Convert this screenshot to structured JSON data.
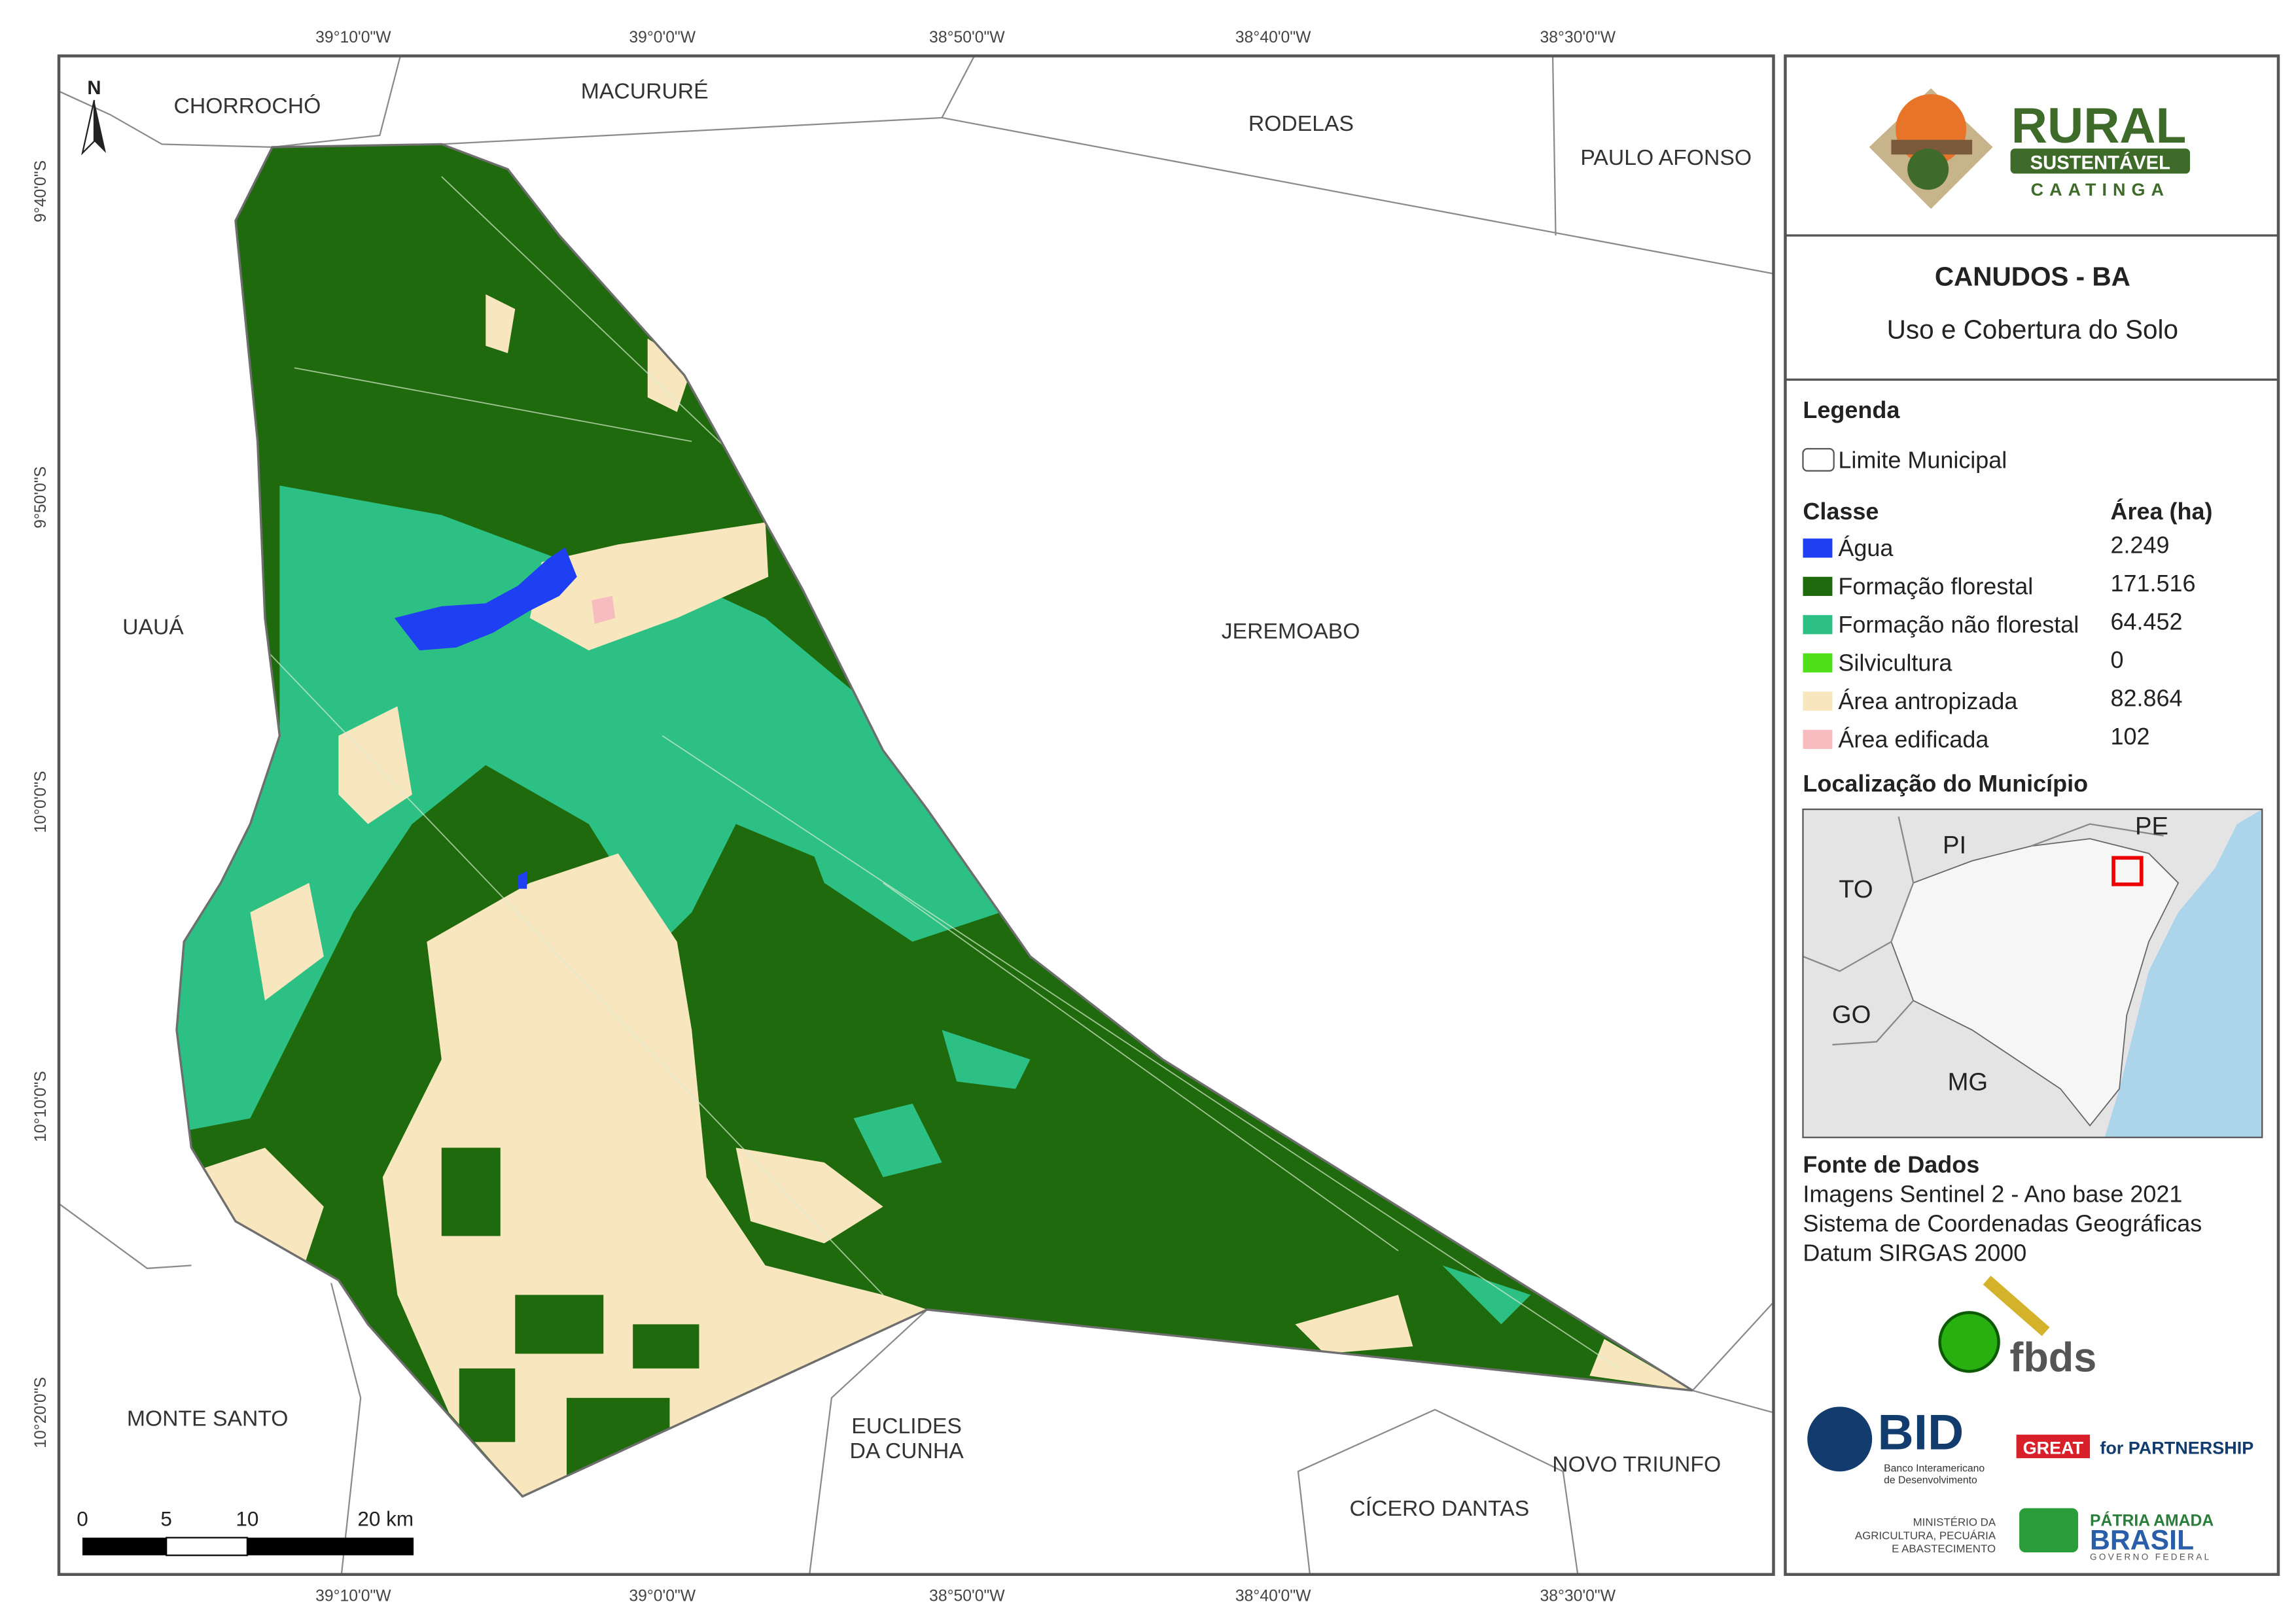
{
  "map": {
    "coordinates": {
      "longitude": [
        "39°10'0\"W",
        "39°0'0\"W",
        "38°50'0\"W",
        "38°40'0\"W",
        "38°30'0\"W"
      ],
      "latitude": [
        "9°40'0\"S",
        "9°50'0\"S",
        "10°0'0\"S",
        "10°10'0\"S",
        "10°20'0\"S"
      ]
    },
    "north": "N",
    "municipalities": [
      "CHORROCHÓ",
      "MACURURÉ",
      "RODELAS",
      "PAULO AFONSO",
      "UAUÁ",
      "JEREMOABO",
      "MONTE SANTO",
      [
        "EUCLIDES",
        "DA CUNHA"
      ],
      "CÍCERO DANTAS",
      "NOVO TRIUNFO"
    ],
    "scale_bar": [
      "0",
      "5",
      "10",
      "20 km"
    ]
  },
  "panel": {
    "logo": {
      "word": "RURAL",
      "band": "SUSTENTÁVEL",
      "region": "CAATINGA"
    },
    "title": "CANUDOS - BA",
    "subtitle": "Uso e Cobertura do Solo",
    "legend": {
      "title": "Legenda",
      "boundary": "Limite Municipal",
      "class_header": "Classe",
      "area_header": "Área (ha)",
      "classes": [
        {
          "name": "Água",
          "area": "2.249",
          "color": "#1f3ff2"
        },
        {
          "name": "Formação florestal",
          "area": "171.516",
          "color": "#1f6a0c"
        },
        {
          "name": "Formação não florestal",
          "area": "64.452",
          "color": "#2cc084"
        },
        {
          "name": "Silvicultura",
          "area": "0",
          "color": "#4fe01a"
        },
        {
          "name": "Área antropizada",
          "area": "82.864",
          "color": "#f8e6bf"
        },
        {
          "name": "Área edificada",
          "area": "102",
          "color": "#f7bcc0"
        }
      ]
    },
    "location": {
      "title": "Localização do Município",
      "states": [
        "PE",
        "PI",
        "TO",
        "GO",
        "MG"
      ]
    },
    "sources": {
      "title": "Fonte de Dados",
      "lines": [
        "Imagens Sentinel 2 - Ano base 2021",
        "Sistema de Coordenadas Geográficas",
        "Datum SIRGAS 2000"
      ]
    },
    "partners": {
      "fbds": "fbds",
      "bid": "BID",
      "bid_name": [
        "Banco Interamericano",
        "de Desenvolvimento"
      ],
      "great": "GREAT",
      "partnership": "for PARTNERSHIP",
      "ministry": [
        "MINISTÉRIO DA",
        "AGRICULTURA, PECUÁRIA",
        "E ABASTECIMENTO"
      ],
      "patria": "PÁTRIA AMADA",
      "brasil": "BRASIL",
      "governo": "GOVERNO FEDERAL"
    }
  }
}
